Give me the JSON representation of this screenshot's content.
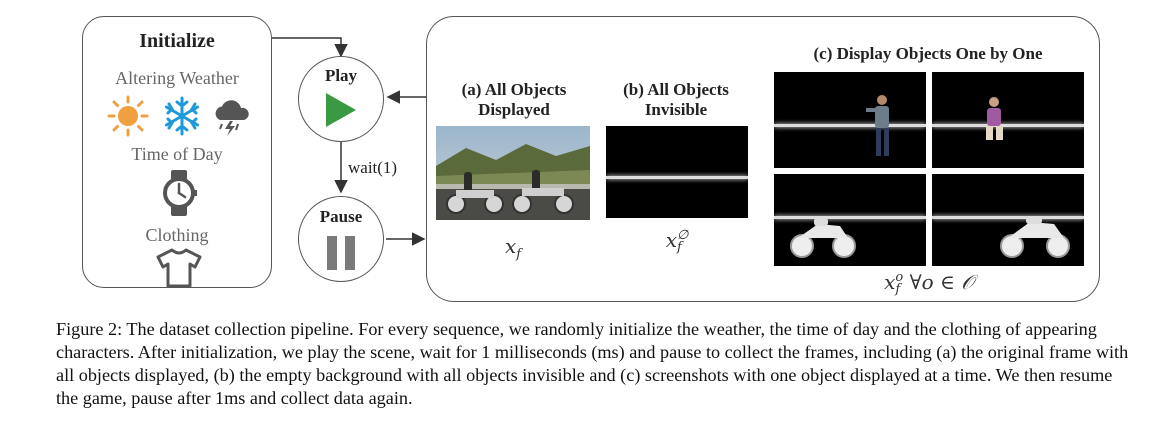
{
  "initialize": {
    "title": "Initialize",
    "weather_label": "Altering Weather",
    "time_label": "Time of Day",
    "clothing_label": "Clothing",
    "icons": [
      "sun-icon",
      "snowflake-icon",
      "storm-cloud-icon",
      "watch-icon",
      "tshirt-icon"
    ]
  },
  "control": {
    "play_label": "Play",
    "pause_label": "Pause",
    "wait_label": "wait(1)"
  },
  "panels": {
    "a_title_line1": "(a) All Objects",
    "a_title_line2": "Displayed",
    "a_math_base": "x",
    "a_math_sub": "f",
    "b_title_line1": "(b) All Objects",
    "b_title_line2": "Invisible",
    "b_math_base": "x",
    "b_math_sub": "f",
    "b_math_sup": "∅",
    "c_title": "(c) Display Objects One by One",
    "c_math_base": "x",
    "c_math_sub": "f",
    "c_math_sup": "o",
    "c_math_rest": "∀o ∈ 𝒪"
  },
  "caption": "Figure 2: The dataset collection pipeline. For every sequence, we randomly initialize the weather, the time of day and the clothing of appearing characters. After initialization, we play the scene, wait for 1 milliseconds (ms) and pause to collect the frames, including (a) the original frame with all objects displayed, (b) the empty background with all objects invisible and (c) screenshots with one object displayed at a time. We then resume the game, pause after 1ms and collect data again.",
  "colors": {
    "play_green": "#3a9a44",
    "pause_gray": "#7a7a7a",
    "sun_orange": "#f0a040",
    "snow_blue": "#1e9ad8",
    "icon_dark": "#555555"
  }
}
